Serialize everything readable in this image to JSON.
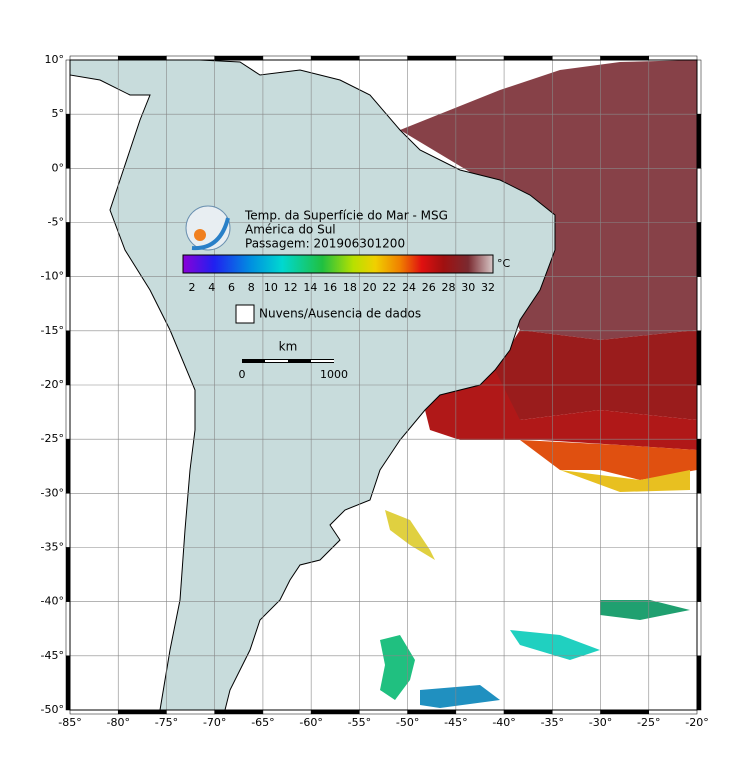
{
  "title": {
    "lines": [
      "Temp. da Superfície do Mar - MSG",
      "América do Sul",
      "Passagem: 201906301200"
    ]
  },
  "colorbar": {
    "ticks": [
      "2",
      "4",
      "6",
      "8",
      "10",
      "12",
      "14",
      "16",
      "18",
      "20",
      "22",
      "24",
      "26",
      "28",
      "30",
      "32"
    ],
    "unit": "°C"
  },
  "legend": {
    "label": "Nuvens/Ausencia de dados"
  },
  "scale": {
    "unit": "km",
    "start": "0",
    "end": "1000"
  },
  "axes": {
    "lat_labels": [
      "10°",
      "5°",
      "0°",
      "-5°",
      "-10°",
      "-15°",
      "-20°",
      "-25°",
      "-30°",
      "-35°",
      "-40°",
      "-45°",
      "-50°"
    ],
    "lon_labels": [
      "-85°",
      "-80°",
      "-75°",
      "-70°",
      "-65°",
      "-60°",
      "-55°",
      "-50°",
      "-45°",
      "-40°",
      "-35°",
      "-30°",
      "-25°",
      "-20°"
    ]
  }
}
